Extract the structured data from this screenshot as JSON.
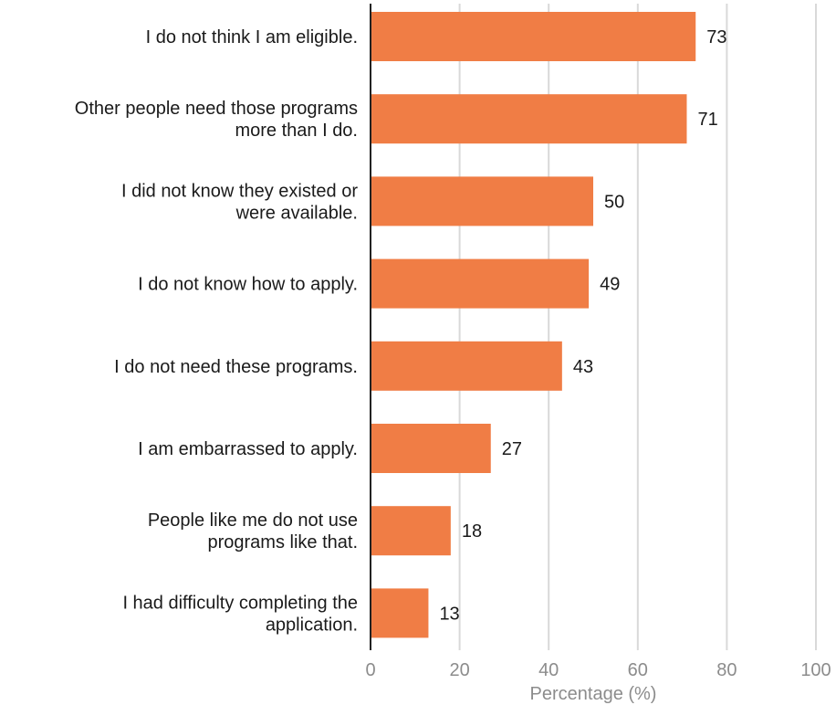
{
  "chart_data": {
    "type": "bar",
    "orientation": "horizontal",
    "categories": [
      [
        "I do not think I am eligible."
      ],
      [
        "Other people need those programs",
        "more than I do."
      ],
      [
        "I did not know they existed or",
        "were available."
      ],
      [
        "I do not know how to apply."
      ],
      [
        "I do not need these programs."
      ],
      [
        "I am embarrassed to apply."
      ],
      [
        "People like me do not use",
        "programs like that."
      ],
      [
        "I had difficulty completing the",
        "application."
      ]
    ],
    "values": [
      73,
      71,
      50,
      49,
      43,
      27,
      18,
      13
    ],
    "data_labels": [
      "73",
      "71",
      "50",
      "49",
      "43",
      "27",
      "18",
      "13"
    ],
    "xlabel": "Percentage (%)",
    "xlim": [
      0,
      100
    ],
    "xticks": [
      0,
      20,
      40,
      60,
      80,
      100
    ],
    "xtick_labels": [
      "0",
      "20",
      "40",
      "60",
      "80",
      "100"
    ],
    "grid": "vertical",
    "bar_color": "#f07d45",
    "grid_color": "#d9d9d9",
    "axis_color": "#222222"
  }
}
